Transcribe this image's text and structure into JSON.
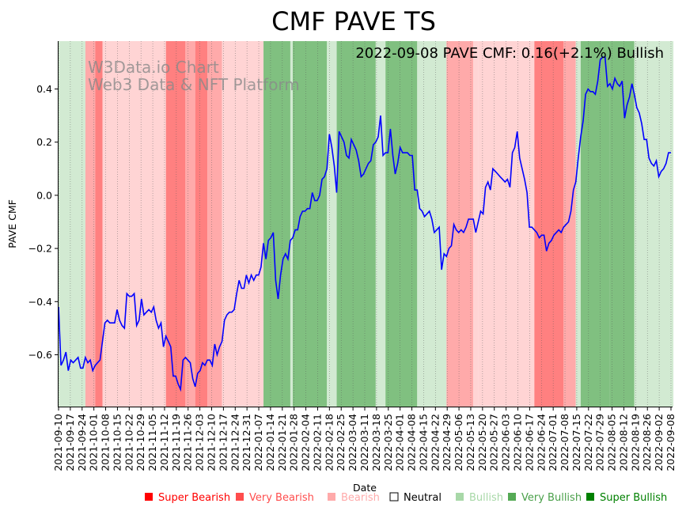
{
  "chart_data": {
    "type": "line",
    "title": "CMF PAVE TS",
    "subtitle": "2022-09-08 PAVE CMF: 0.16(+2.1%) Bullish",
    "watermark": [
      "W3Data.io Chart",
      "Web3 Data & NFT Platform"
    ],
    "xlabel": "Date",
    "ylabel": "PAVE CMF",
    "ylim": [
      -0.795,
      0.58
    ],
    "yticks": [
      -0.6,
      -0.4,
      -0.2,
      0.0,
      0.2,
      0.4
    ],
    "ytick_labels": [
      "−0.6",
      "−0.4",
      "−0.2",
      "0.0",
      "0.2",
      "0.4"
    ],
    "x_start": "2021-09-10",
    "x_end": "2022-09-08",
    "x_tick_labels": [
      "2021-09-10",
      "2021-09-17",
      "2021-09-24",
      "2021-10-01",
      "2021-10-08",
      "2021-10-15",
      "2021-10-22",
      "2021-10-29",
      "2021-11-05",
      "2021-11-12",
      "2021-11-19",
      "2021-11-26",
      "2021-12-03",
      "2021-12-10",
      "2021-12-17",
      "2021-12-24",
      "2021-12-31",
      "2022-01-07",
      "2022-01-14",
      "2022-01-21",
      "2022-01-28",
      "2022-02-04",
      "2022-02-11",
      "2022-02-18",
      "2022-02-25",
      "2022-03-04",
      "2022-03-11",
      "2022-03-18",
      "2022-03-25",
      "2022-04-01",
      "2022-04-08",
      "2022-04-15",
      "2022-04-22",
      "2022-04-29",
      "2022-05-06",
      "2022-05-13",
      "2022-05-20",
      "2022-05-27",
      "2022-06-03",
      "2022-06-10",
      "2022-06-17",
      "2022-06-24",
      "2022-07-01",
      "2022-07-08",
      "2022-07-15",
      "2022-07-22",
      "2022-07-29",
      "2022-08-05",
      "2022-08-12",
      "2022-08-19",
      "2022-08-26",
      "2022-09-02",
      "2022-09-08"
    ],
    "series": [
      {
        "name": "PAVE CMF",
        "color": "#0000ff",
        "points": [
          [
            0,
            -0.42
          ],
          [
            1,
            -0.64
          ],
          [
            2,
            -0.62
          ],
          [
            3,
            -0.59
          ],
          [
            4,
            -0.66
          ],
          [
            5,
            -0.62
          ],
          [
            6,
            -0.63
          ],
          [
            7,
            -0.62
          ],
          [
            8,
            -0.61
          ],
          [
            9,
            -0.65
          ],
          [
            10,
            -0.65
          ],
          [
            11,
            -0.61
          ],
          [
            12,
            -0.63
          ],
          [
            13,
            -0.62
          ],
          [
            14,
            -0.66
          ],
          [
            15,
            -0.64
          ],
          [
            16,
            -0.63
          ],
          [
            17,
            -0.62
          ],
          [
            18,
            -0.55
          ],
          [
            19,
            -0.48
          ],
          [
            20,
            -0.47
          ],
          [
            21,
            -0.48
          ],
          [
            22,
            -0.48
          ],
          [
            23,
            -0.48
          ],
          [
            24,
            -0.43
          ],
          [
            25,
            -0.47
          ],
          [
            26,
            -0.49
          ],
          [
            27,
            -0.5
          ],
          [
            28,
            -0.37
          ],
          [
            29,
            -0.38
          ],
          [
            30,
            -0.38
          ],
          [
            31,
            -0.37
          ],
          [
            32,
            -0.49
          ],
          [
            33,
            -0.47
          ],
          [
            34,
            -0.39
          ],
          [
            35,
            -0.45
          ],
          [
            36,
            -0.44
          ],
          [
            37,
            -0.43
          ],
          [
            38,
            -0.44
          ],
          [
            39,
            -0.42
          ],
          [
            40,
            -0.47
          ],
          [
            41,
            -0.5
          ],
          [
            42,
            -0.48
          ],
          [
            43,
            -0.57
          ],
          [
            44,
            -0.53
          ],
          [
            45,
            -0.55
          ],
          [
            46,
            -0.57
          ],
          [
            47,
            -0.68
          ],
          [
            48,
            -0.68
          ],
          [
            49,
            -0.71
          ],
          [
            50,
            -0.73
          ],
          [
            51,
            -0.62
          ],
          [
            52,
            -0.61
          ],
          [
            53,
            -0.62
          ],
          [
            54,
            -0.63
          ],
          [
            55,
            -0.69
          ],
          [
            56,
            -0.72
          ],
          [
            57,
            -0.67
          ],
          [
            58,
            -0.66
          ],
          [
            59,
            -0.63
          ],
          [
            60,
            -0.64
          ],
          [
            61,
            -0.62
          ],
          [
            62,
            -0.62
          ],
          [
            63,
            -0.64
          ],
          [
            64,
            -0.56
          ],
          [
            65,
            -0.6
          ],
          [
            66,
            -0.57
          ],
          [
            67,
            -0.55
          ],
          [
            68,
            -0.47
          ],
          [
            69,
            -0.45
          ],
          [
            70,
            -0.44
          ],
          [
            71,
            -0.44
          ],
          [
            72,
            -0.43
          ],
          [
            73,
            -0.37
          ],
          [
            74,
            -0.32
          ],
          [
            75,
            -0.35
          ],
          [
            76,
            -0.35
          ],
          [
            77,
            -0.3
          ],
          [
            78,
            -0.33
          ],
          [
            79,
            -0.3
          ],
          [
            80,
            -0.32
          ],
          [
            81,
            -0.3
          ],
          [
            82,
            -0.3
          ],
          [
            83,
            -0.27
          ],
          [
            84,
            -0.18
          ],
          [
            85,
            -0.24
          ],
          [
            86,
            -0.17
          ],
          [
            87,
            -0.16
          ],
          [
            88,
            -0.14
          ],
          [
            89,
            -0.32
          ],
          [
            90,
            -0.39
          ],
          [
            91,
            -0.3
          ],
          [
            92,
            -0.24
          ],
          [
            93,
            -0.22
          ],
          [
            94,
            -0.24
          ],
          [
            95,
            -0.17
          ],
          [
            96,
            -0.16
          ],
          [
            97,
            -0.13
          ],
          [
            98,
            -0.13
          ],
          [
            99,
            -0.08
          ],
          [
            100,
            -0.06
          ],
          [
            101,
            -0.06
          ],
          [
            102,
            -0.05
          ],
          [
            103,
            -0.05
          ],
          [
            104,
            0.01
          ],
          [
            105,
            -0.02
          ],
          [
            106,
            -0.02
          ],
          [
            107,
            0.0
          ],
          [
            108,
            0.06
          ],
          [
            109,
            0.07
          ],
          [
            110,
            0.1
          ],
          [
            111,
            0.23
          ],
          [
            112,
            0.18
          ],
          [
            113,
            0.11
          ],
          [
            114,
            0.01
          ],
          [
            115,
            0.24
          ],
          [
            116,
            0.22
          ],
          [
            117,
            0.2
          ],
          [
            118,
            0.15
          ],
          [
            119,
            0.14
          ],
          [
            120,
            0.21
          ],
          [
            121,
            0.19
          ],
          [
            122,
            0.17
          ],
          [
            123,
            0.13
          ],
          [
            124,
            0.07
          ],
          [
            125,
            0.08
          ],
          [
            126,
            0.1
          ],
          [
            127,
            0.12
          ],
          [
            128,
            0.13
          ],
          [
            129,
            0.19
          ],
          [
            130,
            0.2
          ],
          [
            131,
            0.22
          ],
          [
            132,
            0.3
          ],
          [
            133,
            0.15
          ],
          [
            134,
            0.16
          ],
          [
            135,
            0.16
          ],
          [
            136,
            0.25
          ],
          [
            137,
            0.15
          ],
          [
            138,
            0.08
          ],
          [
            139,
            0.12
          ],
          [
            140,
            0.18
          ],
          [
            141,
            0.16
          ],
          [
            142,
            0.16
          ],
          [
            143,
            0.16
          ],
          [
            144,
            0.15
          ],
          [
            145,
            0.15
          ],
          [
            146,
            0.02
          ],
          [
            147,
            0.02
          ],
          [
            148,
            -0.05
          ],
          [
            149,
            -0.06
          ],
          [
            150,
            -0.08
          ],
          [
            151,
            -0.07
          ],
          [
            152,
            -0.06
          ],
          [
            153,
            -0.09
          ],
          [
            154,
            -0.14
          ],
          [
            155,
            -0.13
          ],
          [
            156,
            -0.12
          ],
          [
            157,
            -0.28
          ],
          [
            158,
            -0.22
          ],
          [
            159,
            -0.23
          ],
          [
            160,
            -0.2
          ],
          [
            161,
            -0.19
          ],
          [
            162,
            -0.11
          ],
          [
            163,
            -0.13
          ],
          [
            164,
            -0.14
          ],
          [
            165,
            -0.13
          ],
          [
            166,
            -0.14
          ],
          [
            167,
            -0.12
          ],
          [
            168,
            -0.09
          ],
          [
            169,
            -0.09
          ],
          [
            170,
            -0.09
          ],
          [
            171,
            -0.14
          ],
          [
            172,
            -0.1
          ],
          [
            173,
            -0.06
          ],
          [
            174,
            -0.07
          ],
          [
            175,
            0.03
          ],
          [
            176,
            0.05
          ],
          [
            177,
            0.02
          ],
          [
            178,
            0.1
          ],
          [
            179,
            0.09
          ],
          [
            180,
            0.08
          ],
          [
            181,
            0.07
          ],
          [
            182,
            0.06
          ],
          [
            183,
            0.05
          ],
          [
            184,
            0.06
          ],
          [
            185,
            0.03
          ],
          [
            186,
            0.16
          ],
          [
            187,
            0.18
          ],
          [
            188,
            0.24
          ],
          [
            189,
            0.14
          ],
          [
            190,
            0.1
          ],
          [
            191,
            0.06
          ],
          [
            192,
            0.01
          ],
          [
            193,
            -0.12
          ],
          [
            194,
            -0.12
          ],
          [
            195,
            -0.13
          ],
          [
            196,
            -0.14
          ],
          [
            197,
            -0.16
          ],
          [
            198,
            -0.15
          ],
          [
            199,
            -0.15
          ],
          [
            200,
            -0.21
          ],
          [
            201,
            -0.18
          ],
          [
            202,
            -0.17
          ],
          [
            203,
            -0.15
          ],
          [
            204,
            -0.14
          ],
          [
            205,
            -0.13
          ],
          [
            206,
            -0.14
          ],
          [
            207,
            -0.12
          ],
          [
            208,
            -0.11
          ],
          [
            209,
            -0.1
          ],
          [
            210,
            -0.06
          ],
          [
            211,
            0.02
          ],
          [
            212,
            0.05
          ],
          [
            213,
            0.14
          ],
          [
            214,
            0.22
          ],
          [
            215,
            0.28
          ],
          [
            216,
            0.38
          ],
          [
            217,
            0.4
          ],
          [
            218,
            0.39
          ],
          [
            219,
            0.39
          ],
          [
            220,
            0.38
          ],
          [
            221,
            0.43
          ],
          [
            222,
            0.51
          ],
          [
            223,
            0.52
          ],
          [
            224,
            0.52
          ],
          [
            225,
            0.41
          ],
          [
            226,
            0.42
          ],
          [
            227,
            0.4
          ],
          [
            228,
            0.44
          ],
          [
            229,
            0.42
          ],
          [
            230,
            0.41
          ],
          [
            231,
            0.43
          ],
          [
            232,
            0.29
          ],
          [
            233,
            0.34
          ],
          [
            234,
            0.37
          ],
          [
            235,
            0.42
          ],
          [
            236,
            0.38
          ],
          [
            237,
            0.33
          ],
          [
            238,
            0.31
          ],
          [
            239,
            0.27
          ],
          [
            240,
            0.21
          ],
          [
            241,
            0.21
          ],
          [
            242,
            0.14
          ],
          [
            243,
            0.12
          ],
          [
            244,
            0.11
          ],
          [
            245,
            0.13
          ],
          [
            246,
            0.07
          ],
          [
            247,
            0.09
          ],
          [
            248,
            0.1
          ],
          [
            249,
            0.12
          ],
          [
            250,
            0.16
          ],
          [
            251,
            0.16
          ]
        ]
      }
    ],
    "regions": [
      {
        "from": 0,
        "to": 11,
        "state": "Bullish"
      },
      {
        "from": 11,
        "to": 15,
        "state": "Very Bearish"
      },
      {
        "from": 15,
        "to": 18,
        "state": "Super Bearish"
      },
      {
        "from": 18,
        "to": 44,
        "state": "Bearish"
      },
      {
        "from": 44,
        "to": 52,
        "state": "Super Bearish"
      },
      {
        "from": 52,
        "to": 56,
        "state": "Very Bearish"
      },
      {
        "from": 56,
        "to": 61,
        "state": "Super Bearish"
      },
      {
        "from": 61,
        "to": 67,
        "state": "Very Bearish"
      },
      {
        "from": 67,
        "to": 84,
        "state": "Bearish"
      },
      {
        "from": 84,
        "to": 95,
        "state": "Very Bullish"
      },
      {
        "from": 95,
        "to": 96,
        "state": "Bullish"
      },
      {
        "from": 96,
        "to": 110,
        "state": "Very Bullish"
      },
      {
        "from": 110,
        "to": 114,
        "state": "Bullish"
      },
      {
        "from": 114,
        "to": 130,
        "state": "Very Bullish"
      },
      {
        "from": 130,
        "to": 134,
        "state": "Bullish"
      },
      {
        "from": 134,
        "to": 147,
        "state": "Very Bullish"
      },
      {
        "from": 147,
        "to": 159,
        "state": "Bullish"
      },
      {
        "from": 159,
        "to": 170,
        "state": "Very Bearish"
      },
      {
        "from": 170,
        "to": 172,
        "state": "Bearish"
      },
      {
        "from": 172,
        "to": 195,
        "state": "Bearish"
      },
      {
        "from": 195,
        "to": 207,
        "state": "Super Bearish"
      },
      {
        "from": 207,
        "to": 212,
        "state": "Very Bearish"
      },
      {
        "from": 212,
        "to": 214,
        "state": "Bullish"
      },
      {
        "from": 214,
        "to": 226,
        "state": "Very Bullish"
      },
      {
        "from": 226,
        "to": 236,
        "state": "Very Bullish"
      },
      {
        "from": 236,
        "to": 252,
        "state": "Bullish"
      }
    ],
    "legend": [
      {
        "label": "Super Bearish",
        "color": "#ff0000",
        "text_color": "#ff0000"
      },
      {
        "label": "Very Bearish",
        "color": "#ff4d4d",
        "text_color": "#ff4d4d"
      },
      {
        "label": "Bearish",
        "color": "#ffaaaa",
        "text_color": "#ffaaaa"
      },
      {
        "label": "Neutral",
        "color": "#ffffff",
        "text_color": "#000000"
      },
      {
        "label": "Bullish",
        "color": "#a8d8a8",
        "text_color": "#a8d8a8"
      },
      {
        "label": "Very Bullish",
        "color": "#55aa55",
        "text_color": "#4aa04a"
      },
      {
        "label": "Super Bullish",
        "color": "#008000",
        "text_color": "#008000"
      }
    ],
    "state_colors": {
      "Super Bearish": "#ff8080",
      "Very Bearish": "#ffaaaa",
      "Bearish": "#ffd4d4",
      "Neutral": "#ffffff",
      "Bullish": "#d2ead2",
      "Very Bullish": "#80c080",
      "Super Bullish": "#6ab06a"
    },
    "legend_position": "bottom"
  }
}
